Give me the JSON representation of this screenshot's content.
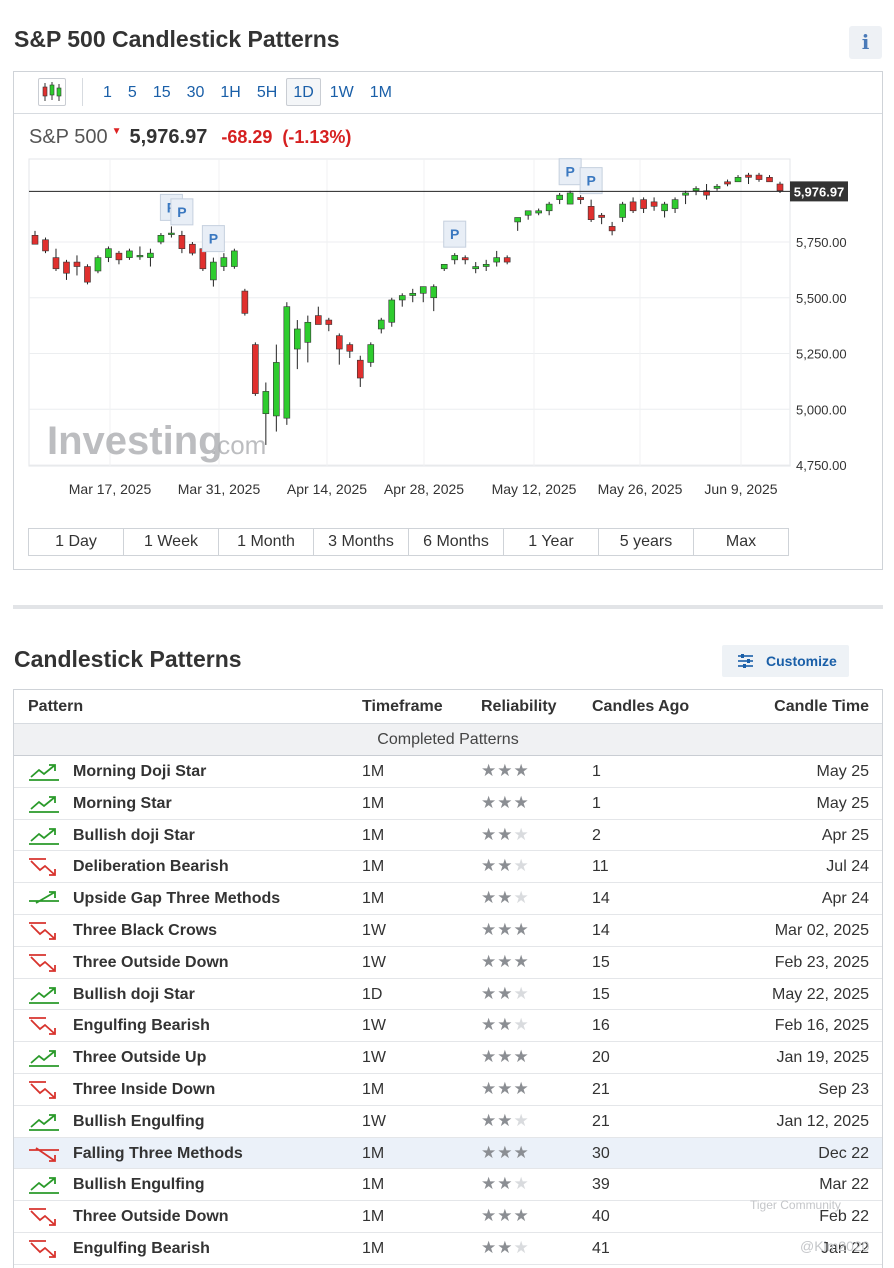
{
  "page": {
    "title": "S&P 500 Candlestick Patterns",
    "info_icon": "i"
  },
  "toolbar": {
    "chart_type_icon": "candlestick-icon",
    "intervals": [
      "1",
      "5",
      "15",
      "30",
      "1H",
      "5H",
      "1D",
      "1W",
      "1M"
    ],
    "active_interval": "1D"
  },
  "quote": {
    "name": "S&P 500",
    "last": "5,976.97",
    "change": "-68.29",
    "change_pct": "(-1.13%)"
  },
  "chart": {
    "price_tag": "5,976.97",
    "watermark_main": "Investing",
    "watermark_suffix": ".com",
    "pattern_marker": "P",
    "colors": {
      "up": "#2ecc2e",
      "down": "#e0302e",
      "wick": "#222222"
    }
  },
  "chart_data": {
    "type": "candlestick",
    "y_ticks": [
      "5,750.00",
      "5,500.00",
      "5,250.00",
      "5,000.00",
      "4,750.00"
    ],
    "y_tick_values": [
      5750,
      5500,
      5250,
      5000,
      4750
    ],
    "x_labels": [
      "Mar 17, 2025",
      "Mar 31, 2025",
      "Apr 14, 2025",
      "Apr 28, 2025",
      "May 12, 2025",
      "May 26, 2025",
      "Jun 9, 2025"
    ],
    "last_price": 5976.97,
    "candles": [
      {
        "o": 5780,
        "h": 5800,
        "l": 5740,
        "c": 5740
      },
      {
        "o": 5760,
        "h": 5770,
        "l": 5700,
        "c": 5710
      },
      {
        "o": 5680,
        "h": 5720,
        "l": 5620,
        "c": 5630
      },
      {
        "o": 5660,
        "h": 5670,
        "l": 5580,
        "c": 5610
      },
      {
        "o": 5660,
        "h": 5690,
        "l": 5600,
        "c": 5640
      },
      {
        "o": 5640,
        "h": 5650,
        "l": 5560,
        "c": 5570
      },
      {
        "o": 5620,
        "h": 5690,
        "l": 5610,
        "c": 5680
      },
      {
        "o": 5680,
        "h": 5730,
        "l": 5660,
        "c": 5720
      },
      {
        "o": 5700,
        "h": 5710,
        "l": 5650,
        "c": 5670
      },
      {
        "o": 5680,
        "h": 5720,
        "l": 5670,
        "c": 5710
      },
      {
        "o": 5690,
        "h": 5730,
        "l": 5670,
        "c": 5690
      },
      {
        "o": 5680,
        "h": 5720,
        "l": 5640,
        "c": 5700
      },
      {
        "o": 5750,
        "h": 5790,
        "l": 5740,
        "c": 5780
      },
      {
        "o": 5790,
        "h": 5820,
        "l": 5770,
        "c": 5790
      },
      {
        "o": 5780,
        "h": 5800,
        "l": 5700,
        "c": 5720
      },
      {
        "o": 5740,
        "h": 5750,
        "l": 5690,
        "c": 5700
      },
      {
        "o": 5720,
        "h": 5730,
        "l": 5620,
        "c": 5630
      },
      {
        "o": 5580,
        "h": 5680,
        "l": 5550,
        "c": 5660
      },
      {
        "o": 5640,
        "h": 5700,
        "l": 5620,
        "c": 5680
      },
      {
        "o": 5640,
        "h": 5720,
        "l": 5630,
        "c": 5710
      },
      {
        "o": 5530,
        "h": 5540,
        "l": 5420,
        "c": 5430
      },
      {
        "o": 5290,
        "h": 5300,
        "l": 5060,
        "c": 5070
      },
      {
        "o": 4980,
        "h": 5120,
        "l": 4840,
        "c": 5080
      },
      {
        "o": 4970,
        "h": 5290,
        "l": 4900,
        "c": 5210
      },
      {
        "o": 4960,
        "h": 5480,
        "l": 4930,
        "c": 5460
      },
      {
        "o": 5270,
        "h": 5400,
        "l": 5180,
        "c": 5360
      },
      {
        "o": 5300,
        "h": 5420,
        "l": 5210,
        "c": 5390
      },
      {
        "o": 5420,
        "h": 5460,
        "l": 5380,
        "c": 5380
      },
      {
        "o": 5400,
        "h": 5410,
        "l": 5350,
        "c": 5380
      },
      {
        "o": 5330,
        "h": 5340,
        "l": 5200,
        "c": 5270
      },
      {
        "o": 5290,
        "h": 5300,
        "l": 5230,
        "c": 5260
      },
      {
        "o": 5220,
        "h": 5240,
        "l": 5100,
        "c": 5140
      },
      {
        "o": 5210,
        "h": 5300,
        "l": 5190,
        "c": 5290
      },
      {
        "o": 5360,
        "h": 5410,
        "l": 5340,
        "c": 5400
      },
      {
        "o": 5390,
        "h": 5500,
        "l": 5370,
        "c": 5490
      },
      {
        "o": 5490,
        "h": 5520,
        "l": 5460,
        "c": 5510
      },
      {
        "o": 5510,
        "h": 5540,
        "l": 5480,
        "c": 5520
      },
      {
        "o": 5520,
        "h": 5550,
        "l": 5480,
        "c": 5550
      },
      {
        "o": 5500,
        "h": 5560,
        "l": 5440,
        "c": 5550
      },
      {
        "o": 5630,
        "h": 5650,
        "l": 5620,
        "c": 5650
      },
      {
        "o": 5670,
        "h": 5700,
        "l": 5650,
        "c": 5690
      },
      {
        "o": 5680,
        "h": 5690,
        "l": 5650,
        "c": 5670
      },
      {
        "o": 5630,
        "h": 5660,
        "l": 5610,
        "c": 5640
      },
      {
        "o": 5640,
        "h": 5670,
        "l": 5620,
        "c": 5650
      },
      {
        "o": 5660,
        "h": 5710,
        "l": 5640,
        "c": 5680
      },
      {
        "o": 5680,
        "h": 5690,
        "l": 5650,
        "c": 5660
      },
      {
        "o": 5840,
        "h": 5860,
        "l": 5800,
        "c": 5860
      },
      {
        "o": 5870,
        "h": 5890,
        "l": 5850,
        "c": 5890
      },
      {
        "o": 5880,
        "h": 5900,
        "l": 5870,
        "c": 5890
      },
      {
        "o": 5890,
        "h": 5930,
        "l": 5870,
        "c": 5920
      },
      {
        "o": 5940,
        "h": 5970,
        "l": 5920,
        "c": 5960
      },
      {
        "o": 5920,
        "h": 5980,
        "l": 5920,
        "c": 5970
      },
      {
        "o": 5950,
        "h": 5960,
        "l": 5920,
        "c": 5940
      },
      {
        "o": 5910,
        "h": 5940,
        "l": 5840,
        "c": 5850
      },
      {
        "o": 5870,
        "h": 5880,
        "l": 5830,
        "c": 5860
      },
      {
        "o": 5820,
        "h": 5840,
        "l": 5780,
        "c": 5800
      },
      {
        "o": 5860,
        "h": 5930,
        "l": 5840,
        "c": 5920
      },
      {
        "o": 5930,
        "h": 5950,
        "l": 5880,
        "c": 5890
      },
      {
        "o": 5940,
        "h": 5950,
        "l": 5880,
        "c": 5900
      },
      {
        "o": 5930,
        "h": 5950,
        "l": 5890,
        "c": 5910
      },
      {
        "o": 5890,
        "h": 5930,
        "l": 5860,
        "c": 5920
      },
      {
        "o": 5900,
        "h": 5950,
        "l": 5880,
        "c": 5940
      },
      {
        "o": 5960,
        "h": 5980,
        "l": 5920,
        "c": 5970
      },
      {
        "o": 5980,
        "h": 6000,
        "l": 5960,
        "c": 5990
      },
      {
        "o": 5980,
        "h": 6010,
        "l": 5940,
        "c": 5960
      },
      {
        "o": 5990,
        "h": 6010,
        "l": 5980,
        "c": 6000
      },
      {
        "o": 6020,
        "h": 6030,
        "l": 6000,
        "c": 6010
      },
      {
        "o": 6020,
        "h": 6050,
        "l": 6020,
        "c": 6040
      },
      {
        "o": 6050,
        "h": 6060,
        "l": 6010,
        "c": 6040
      },
      {
        "o": 6050,
        "h": 6060,
        "l": 6020,
        "c": 6030
      },
      {
        "o": 6040,
        "h": 6050,
        "l": 6020,
        "c": 6020
      },
      {
        "o": 6010,
        "h": 6020,
        "l": 5970,
        "c": 5980
      }
    ],
    "markers": [
      {
        "i": 13,
        "dx": 0
      },
      {
        "i": 14,
        "dx": 0
      },
      {
        "i": 17,
        "dx": 0
      },
      {
        "i": 40,
        "dx": 0
      },
      {
        "i": 51,
        "dx": 0
      },
      {
        "i": 53,
        "dx": 0
      }
    ]
  },
  "ranges": [
    "1 Day",
    "1 Week",
    "1 Month",
    "3 Months",
    "6 Months",
    "1 Year",
    "5 years",
    "Max"
  ],
  "patterns": {
    "title": "Candlestick Patterns",
    "customize_label": "Customize",
    "headers": {
      "pattern": "Pattern",
      "timeframe": "Timeframe",
      "reliability": "Reliability",
      "candles_ago": "Candles Ago",
      "candle_time": "Candle Time"
    },
    "group_label": "Completed Patterns",
    "rows": [
      {
        "name": "Morning Doji Star",
        "dir": "bullish",
        "tf": "1M",
        "rel": 3,
        "ago": "1",
        "time": "May 25"
      },
      {
        "name": "Morning Star",
        "dir": "bullish",
        "tf": "1M",
        "rel": 3,
        "ago": "1",
        "time": "May 25"
      },
      {
        "name": "Bullish doji Star",
        "dir": "bullish",
        "tf": "1M",
        "rel": 2,
        "ago": "2",
        "time": "Apr 25"
      },
      {
        "name": "Deliberation Bearish",
        "dir": "bearish",
        "tf": "1M",
        "rel": 2,
        "ago": "11",
        "time": "Jul 24"
      },
      {
        "name": "Upside Gap Three Methods",
        "dir": "bullish-cont",
        "tf": "1M",
        "rel": 2,
        "ago": "14",
        "time": "Apr 24"
      },
      {
        "name": "Three Black Crows",
        "dir": "bearish",
        "tf": "1W",
        "rel": 3,
        "ago": "14",
        "time": "Mar 02, 2025"
      },
      {
        "name": "Three Outside Down",
        "dir": "bearish",
        "tf": "1W",
        "rel": 3,
        "ago": "15",
        "time": "Feb 23, 2025"
      },
      {
        "name": "Bullish doji Star",
        "dir": "bullish",
        "tf": "1D",
        "rel": 2,
        "ago": "15",
        "time": "May 22, 2025"
      },
      {
        "name": "Engulfing Bearish",
        "dir": "bearish",
        "tf": "1W",
        "rel": 2,
        "ago": "16",
        "time": "Feb 16, 2025"
      },
      {
        "name": "Three Outside Up",
        "dir": "bullish",
        "tf": "1W",
        "rel": 3,
        "ago": "20",
        "time": "Jan 19, 2025"
      },
      {
        "name": "Three Inside Down",
        "dir": "bearish",
        "tf": "1M",
        "rel": 3,
        "ago": "21",
        "time": "Sep 23"
      },
      {
        "name": "Bullish Engulfing",
        "dir": "bullish",
        "tf": "1W",
        "rel": 2,
        "ago": "21",
        "time": "Jan 12, 2025"
      },
      {
        "name": "Falling Three Methods",
        "dir": "bearish-cont",
        "tf": "1M",
        "rel": 3,
        "ago": "30",
        "time": "Dec 22"
      },
      {
        "name": "Bullish Engulfing",
        "dir": "bullish",
        "tf": "1M",
        "rel": 2,
        "ago": "39",
        "time": "Mar 22"
      },
      {
        "name": "Three Outside Down",
        "dir": "bearish",
        "tf": "1M",
        "rel": 3,
        "ago": "40",
        "time": "Feb 22"
      },
      {
        "name": "Engulfing Bearish",
        "dir": "bearish",
        "tf": "1M",
        "rel": 2,
        "ago": "41",
        "time": "Jan 22"
      }
    ],
    "highlight_row": 12
  },
  "watermark": {
    "line1": "Tiger Community",
    "line2": "@Kim2020"
  }
}
